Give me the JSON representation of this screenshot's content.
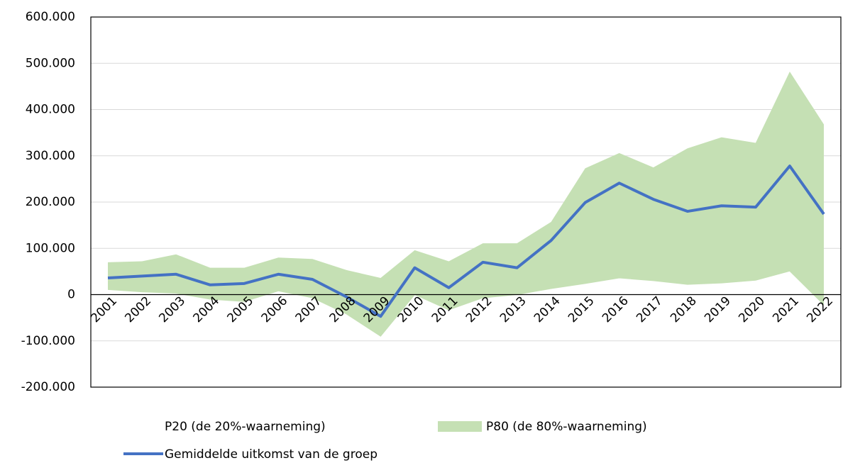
{
  "chart_data": {
    "type": "band-line",
    "categories": [
      "2001",
      "2002",
      "2003",
      "2004",
      "2005",
      "2006",
      "2007",
      "2008",
      "2009",
      "2010",
      "2011",
      "2012",
      "2013",
      "2014",
      "2015",
      "2016",
      "2017",
      "2018",
      "2019",
      "2020",
      "2021",
      "2022"
    ],
    "series": [
      {
        "name": "P20 (de 20%-waarneming)",
        "color": "#ffffff",
        "role": "lower",
        "values": [
          11000,
          6000,
          3000,
          -10000,
          -15000,
          8000,
          -7000,
          -42000,
          -90000,
          0,
          -33000,
          -7000,
          0,
          13000,
          24000,
          36000,
          30000,
          22000,
          25000,
          31000,
          51000,
          -22000
        ]
      },
      {
        "name": "P80 (de 80%-waarneming)",
        "color": "#c5e0b4",
        "role": "upper",
        "values": [
          70000,
          72000,
          87000,
          58000,
          58000,
          80000,
          77000,
          53000,
          36000,
          96000,
          72000,
          111000,
          111000,
          157000,
          273000,
          306000,
          275000,
          316000,
          340000,
          328000,
          482000,
          368000
        ]
      },
      {
        "name": "Gemiddelde uitkomst van de groep",
        "color": "#4472c4",
        "role": "line",
        "values": [
          36000,
          40000,
          44000,
          21000,
          24000,
          44000,
          33000,
          -5000,
          -47000,
          58000,
          15000,
          70000,
          58000,
          117000,
          199000,
          241000,
          206000,
          180000,
          192000,
          189000,
          278000,
          174000
        ]
      }
    ],
    "ylim": [
      -200000,
      600000
    ],
    "yticks": [
      {
        "value": -200000,
        "label": "-200.000"
      },
      {
        "value": -100000,
        "label": "-100.000"
      },
      0,
      {
        "value": 100000,
        "label": "100.000"
      },
      {
        "value": 200000,
        "label": "200.000"
      },
      {
        "value": 300000,
        "label": "300.000"
      },
      {
        "value": 400000,
        "label": "400.000"
      },
      {
        "value": 500000,
        "label": "500.000"
      },
      {
        "value": 600000,
        "label": "600.000"
      }
    ],
    "grid": true
  }
}
